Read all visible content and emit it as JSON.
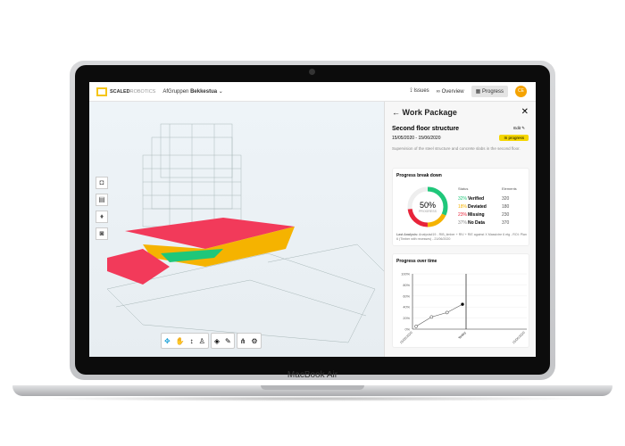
{
  "device": {
    "label": "MacBook Air"
  },
  "topbar": {
    "logo_bold": "SCALED",
    "logo_light": "ROBOTICS",
    "project_prefix": "AfGruppen",
    "project_name": "Bekkestua",
    "nav": [
      {
        "label": "Issues",
        "icon": "issues-icon"
      },
      {
        "label": "Overview",
        "icon": "binoculars-icon"
      },
      {
        "label": "Progress",
        "icon": "progress-icon",
        "active": true
      }
    ],
    "avatar": "CE"
  },
  "panel": {
    "title": "Work Package",
    "name": "Second floor structure",
    "edit": "Edit",
    "dates": "15/05/2020 - 15/06/2020",
    "status": "In progress",
    "description": "Supervision of the steel structure and concrete slabs in the second floor.",
    "breakdown": {
      "title": "Progress break down",
      "percent": "50%",
      "percent_label": "PROGRESS",
      "col_status": "Status",
      "col_elements": "Elements",
      "rows": [
        {
          "pct": "32%",
          "label": "Verified",
          "count": "320",
          "color": "#1fc77a"
        },
        {
          "pct": "18%",
          "label": "Deviated",
          "count": "180",
          "color": "#f5b300"
        },
        {
          "pct": "23%",
          "label": "Missing",
          "count": "230",
          "color": "#e8243a"
        },
        {
          "pct": "37%",
          "label": "No Data",
          "count": "370",
          "color": "#888888"
        }
      ],
      "last_label": "Last Analysis:",
      "last_text": "Analysis#19 - RIB_timber + RIV + RIE against X Massivtre 6 etg - ROI: Plan 6 (Timber with recesses) - 21/06/2020"
    }
  },
  "chart_data": {
    "type": "line",
    "title": "Progress over time",
    "yticks": [
      "0%",
      "20%",
      "40%",
      "60%",
      "80%",
      "100%"
    ],
    "ylim": [
      0,
      100
    ],
    "xlabels": [
      "15/05/2020",
      "Today",
      "15/06/2020"
    ],
    "values": [
      5,
      22,
      30,
      45
    ],
    "grid": true
  }
}
